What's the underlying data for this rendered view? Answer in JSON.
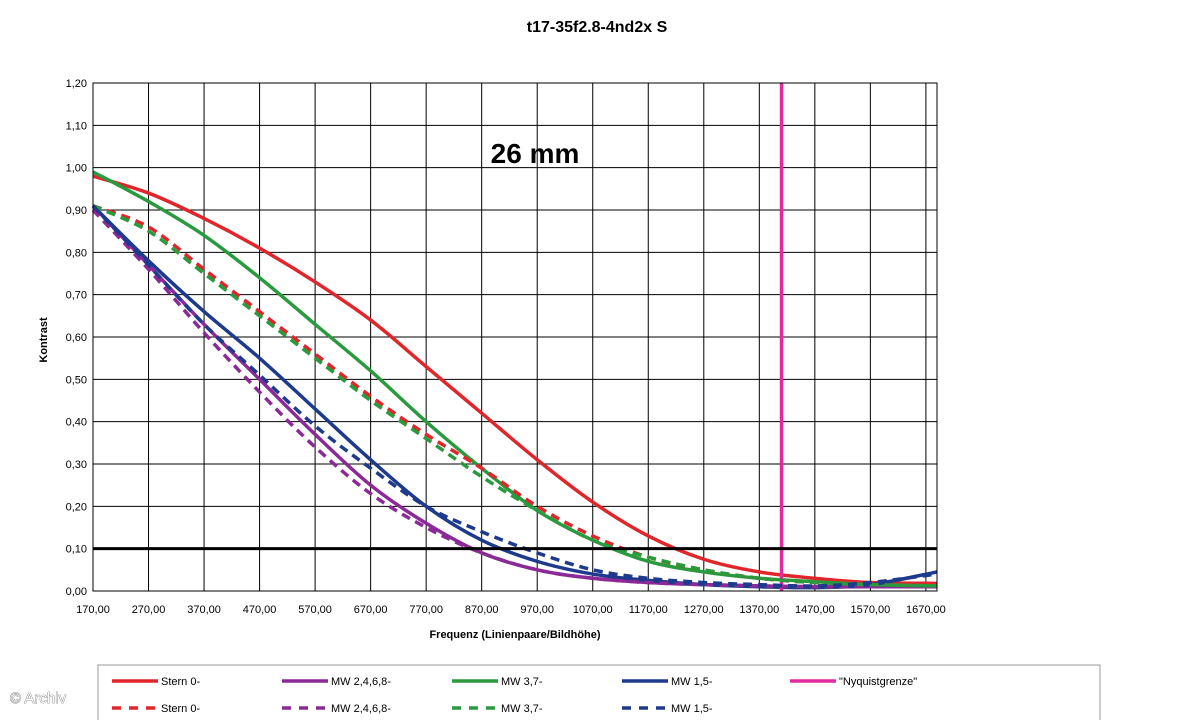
{
  "chart_data": {
    "type": "line",
    "title": "t17-35f2.8-4nd2x S",
    "annotation": "26 mm",
    "xlabel": "Frequenz (Linienpaare/Bildhöhe)",
    "ylabel": "Kontrast",
    "xlim": [
      170,
      1690
    ],
    "ylim": [
      0,
      1.2
    ],
    "x_ticks": [
      "170,00",
      "270,00",
      "370,00",
      "470,00",
      "570,00",
      "670,00",
      "770,00",
      "870,00",
      "970,00",
      "1070,00",
      "1170,00",
      "1270,00",
      "1370,00",
      "1470,00",
      "1570,00",
      "1670,00"
    ],
    "y_ticks": [
      "0,00",
      "0,10",
      "0,20",
      "0,30",
      "0,40",
      "0,50",
      "0,60",
      "0,70",
      "0,80",
      "0,90",
      "1,00",
      "1,10",
      "1,20"
    ],
    "grid": true,
    "legend_position": "bottom",
    "series": [
      {
        "name": "Stern 0-",
        "color": "#e0262b",
        "dash": false,
        "points": [
          [
            170,
            0.98
          ],
          [
            270,
            0.94
          ],
          [
            370,
            0.88
          ],
          [
            470,
            0.81
          ],
          [
            570,
            0.73
          ],
          [
            670,
            0.64
          ],
          [
            770,
            0.53
          ],
          [
            870,
            0.42
          ],
          [
            970,
            0.31
          ],
          [
            1070,
            0.21
          ],
          [
            1170,
            0.13
          ],
          [
            1270,
            0.075
          ],
          [
            1370,
            0.045
          ],
          [
            1470,
            0.03
          ],
          [
            1570,
            0.02
          ],
          [
            1690,
            0.018
          ]
        ]
      },
      {
        "name": "MW 2,4,6,8-",
        "color": "#8b2a96",
        "dash": false,
        "points": [
          [
            170,
            0.91
          ],
          [
            270,
            0.77
          ],
          [
            370,
            0.63
          ],
          [
            470,
            0.5
          ],
          [
            570,
            0.37
          ],
          [
            670,
            0.25
          ],
          [
            770,
            0.16
          ],
          [
            870,
            0.09
          ],
          [
            970,
            0.05
          ],
          [
            1070,
            0.03
          ],
          [
            1170,
            0.02
          ],
          [
            1270,
            0.015
          ],
          [
            1370,
            0.012
          ],
          [
            1470,
            0.01
          ],
          [
            1570,
            0.01
          ],
          [
            1690,
            0.01
          ]
        ]
      },
      {
        "name": "MW 3,7-",
        "color": "#2a9a3e",
        "dash": false,
        "points": [
          [
            170,
            0.99
          ],
          [
            270,
            0.92
          ],
          [
            370,
            0.84
          ],
          [
            470,
            0.74
          ],
          [
            570,
            0.63
          ],
          [
            670,
            0.52
          ],
          [
            770,
            0.4
          ],
          [
            870,
            0.29
          ],
          [
            970,
            0.19
          ],
          [
            1070,
            0.12
          ],
          [
            1170,
            0.07
          ],
          [
            1270,
            0.045
          ],
          [
            1370,
            0.03
          ],
          [
            1470,
            0.022
          ],
          [
            1570,
            0.015
          ],
          [
            1690,
            0.012
          ]
        ]
      },
      {
        "name": "MW 1,5-",
        "color": "#1e3a8c",
        "dash": false,
        "points": [
          [
            170,
            0.91
          ],
          [
            270,
            0.78
          ],
          [
            370,
            0.66
          ],
          [
            470,
            0.55
          ],
          [
            570,
            0.43
          ],
          [
            670,
            0.31
          ],
          [
            770,
            0.2
          ],
          [
            870,
            0.12
          ],
          [
            970,
            0.07
          ],
          [
            1070,
            0.04
          ],
          [
            1170,
            0.025
          ],
          [
            1270,
            0.015
          ],
          [
            1370,
            0.01
          ],
          [
            1470,
            0.008
          ],
          [
            1570,
            0.015
          ],
          [
            1690,
            0.045
          ]
        ]
      },
      {
        "name": "\"Nyquistgrenze\"",
        "color": "#e02aa0",
        "dash": false,
        "vertical": true,
        "points": [
          [
            1410,
            0
          ],
          [
            1410,
            1.2
          ]
        ]
      },
      {
        "name": "Stern 0-",
        "color": "#e0262b",
        "dash": true,
        "points": [
          [
            170,
            0.91
          ],
          [
            270,
            0.86
          ],
          [
            370,
            0.76
          ],
          [
            470,
            0.66
          ],
          [
            570,
            0.56
          ],
          [
            670,
            0.46
          ],
          [
            770,
            0.37
          ],
          [
            870,
            0.29
          ],
          [
            970,
            0.2
          ],
          [
            1070,
            0.13
          ],
          [
            1170,
            0.08
          ],
          [
            1270,
            0.05
          ],
          [
            1370,
            0.03
          ],
          [
            1470,
            0.02
          ],
          [
            1570,
            0.015
          ],
          [
            1690,
            0.012
          ]
        ]
      },
      {
        "name": "MW 2,4,6,8-",
        "color": "#8b2a96",
        "dash": true,
        "points": [
          [
            170,
            0.9
          ],
          [
            270,
            0.76
          ],
          [
            370,
            0.61
          ],
          [
            470,
            0.47
          ],
          [
            570,
            0.34
          ],
          [
            670,
            0.23
          ],
          [
            770,
            0.15
          ],
          [
            870,
            0.09
          ],
          [
            970,
            0.05
          ],
          [
            1070,
            0.03
          ],
          [
            1170,
            0.02
          ],
          [
            1270,
            0.015
          ],
          [
            1370,
            0.012
          ],
          [
            1470,
            0.01
          ],
          [
            1570,
            0.01
          ],
          [
            1690,
            0.01
          ]
        ]
      },
      {
        "name": "MW 3,7-",
        "color": "#2a9a3e",
        "dash": true,
        "points": [
          [
            170,
            0.91
          ],
          [
            270,
            0.85
          ],
          [
            370,
            0.75
          ],
          [
            470,
            0.65
          ],
          [
            570,
            0.55
          ],
          [
            670,
            0.45
          ],
          [
            770,
            0.36
          ],
          [
            870,
            0.27
          ],
          [
            970,
            0.19
          ],
          [
            1070,
            0.12
          ],
          [
            1170,
            0.08
          ],
          [
            1270,
            0.05
          ],
          [
            1370,
            0.03
          ],
          [
            1470,
            0.02
          ],
          [
            1570,
            0.015
          ],
          [
            1690,
            0.012
          ]
        ]
      },
      {
        "name": "MW 1,5-",
        "color": "#1e3a8c",
        "dash": true,
        "points": [
          [
            170,
            0.91
          ],
          [
            270,
            0.77
          ],
          [
            370,
            0.63
          ],
          [
            470,
            0.51
          ],
          [
            570,
            0.39
          ],
          [
            670,
            0.29
          ],
          [
            770,
            0.2
          ],
          [
            870,
            0.14
          ],
          [
            970,
            0.09
          ],
          [
            1070,
            0.05
          ],
          [
            1170,
            0.03
          ],
          [
            1270,
            0.02
          ],
          [
            1370,
            0.015
          ],
          [
            1470,
            0.012
          ],
          [
            1570,
            0.02
          ],
          [
            1690,
            0.04
          ]
        ]
      }
    ],
    "reference_lines": [
      {
        "y": 0.1,
        "color": "#000000"
      }
    ]
  },
  "watermark": "© Archiv"
}
